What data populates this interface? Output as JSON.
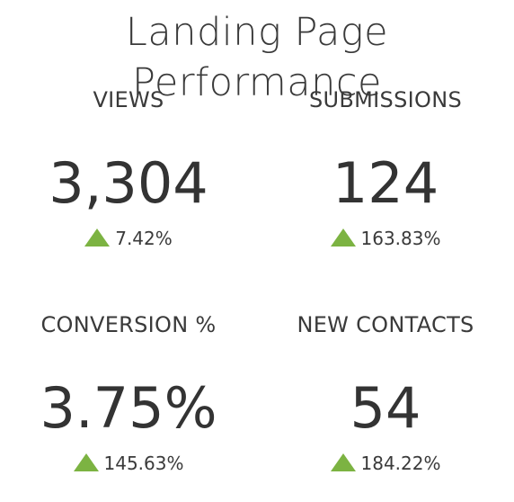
{
  "title": "Landing Page Performance",
  "colors": {
    "up_arrow": "#7cb342",
    "text": "#3a3a3a"
  },
  "metrics": [
    {
      "label": "VIEWS",
      "value": "3,304",
      "change": "7.42%",
      "direction": "up",
      "icon": "triangle-up-icon"
    },
    {
      "label": "SUBMISSIONS",
      "value": "124",
      "change": "163.83%",
      "direction": "up",
      "icon": "triangle-up-icon"
    },
    {
      "label": "CONVERSION %",
      "value": "3.75%",
      "change": "145.63%",
      "direction": "up",
      "icon": "triangle-up-icon"
    },
    {
      "label": "NEW CONTACTS",
      "value": "54",
      "change": "184.22%",
      "direction": "up",
      "icon": "triangle-up-icon"
    }
  ]
}
